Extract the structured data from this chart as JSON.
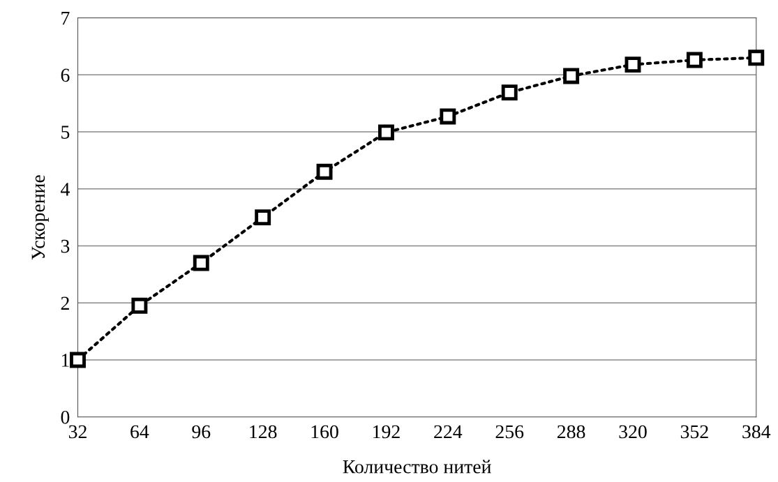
{
  "chart_data": {
    "type": "line",
    "xlabel": "Количество нитей",
    "ylabel": "Ускорение",
    "x": [
      32,
      64,
      96,
      128,
      160,
      192,
      224,
      256,
      288,
      320,
      352,
      384
    ],
    "series": [
      {
        "color": "#000000",
        "values": [
          1.0,
          1.95,
          2.7,
          3.5,
          4.3,
          4.99,
          5.27,
          5.69,
          5.98,
          6.18,
          6.26,
          6.3
        ]
      }
    ],
    "xlim": [
      32,
      384
    ],
    "xticks": [
      32,
      64,
      96,
      128,
      160,
      192,
      224,
      256,
      288,
      320,
      352,
      384
    ],
    "ylim": [
      0,
      7
    ],
    "yticks": [
      0,
      1,
      2,
      3,
      4,
      5,
      6,
      7
    ],
    "grid": "y",
    "marker": "square",
    "line_style": "dotted",
    "legend": false
  }
}
